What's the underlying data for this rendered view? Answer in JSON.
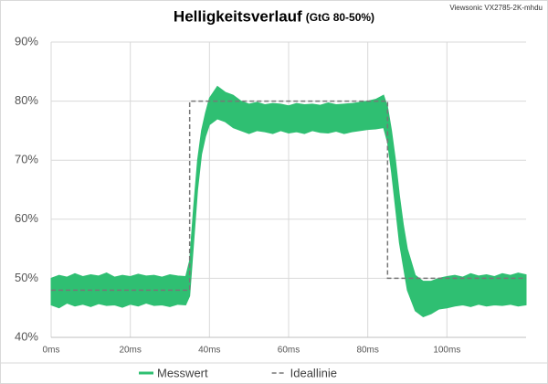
{
  "chart_data": {
    "type": "line",
    "title": "Helligkeitsverlauf",
    "subtitle": "(GtG 80-50%)",
    "annotation": "Viewsonic VX2785-2K-mhdu",
    "xlim": [
      0,
      120
    ],
    "xticks": [
      {
        "value": 0,
        "label": "0ms"
      },
      {
        "value": 20,
        "label": "20ms"
      },
      {
        "value": 40,
        "label": "40ms"
      },
      {
        "value": 60,
        "label": "60ms"
      },
      {
        "value": 80,
        "label": "80ms"
      },
      {
        "value": 100,
        "label": "100ms"
      }
    ],
    "ylim": [
      40,
      90
    ],
    "yticks": [
      {
        "value": 40,
        "label": "40%"
      },
      {
        "value": 50,
        "label": "50%"
      },
      {
        "value": 60,
        "label": "60%"
      },
      {
        "value": 70,
        "label": "70%"
      },
      {
        "value": 80,
        "label": "80%"
      },
      {
        "value": 90,
        "label": "90%"
      }
    ],
    "grid": true,
    "legend": "bottom",
    "series": [
      {
        "name": "Messwert",
        "color": "#2fbf72",
        "x": [
          0,
          2,
          4,
          6,
          8,
          10,
          12,
          14,
          16,
          18,
          20,
          22,
          24,
          26,
          28,
          30,
          32,
          34,
          35,
          36,
          37,
          38,
          39,
          40,
          42,
          44,
          46,
          48,
          50,
          52,
          54,
          56,
          58,
          60,
          62,
          64,
          66,
          68,
          70,
          72,
          74,
          76,
          78,
          80,
          82,
          84,
          85,
          86,
          87,
          88,
          89,
          90,
          92,
          94,
          96,
          98,
          100,
          102,
          104,
          106,
          108,
          110,
          112,
          114,
          116,
          118,
          120
        ],
        "low": [
          45.5,
          45,
          45.8,
          45.3,
          45.6,
          45.2,
          45.7,
          45.4,
          45.5,
          45.1,
          45.6,
          45.3,
          45.8,
          45.4,
          45.5,
          45.2,
          45.6,
          45.5,
          47,
          56,
          65,
          71,
          74,
          76,
          77,
          76.5,
          75.5,
          75,
          74.5,
          75,
          74.8,
          74.5,
          75,
          74.6,
          74.8,
          74.5,
          75,
          74.7,
          74.6,
          74.9,
          74.5,
          74.8,
          75,
          75.2,
          75.3,
          75.5,
          73,
          68,
          62,
          56,
          52,
          48,
          44.5,
          43.5,
          44,
          44.8,
          45,
          45.3,
          45.5,
          45.2,
          45.6,
          45.3,
          45.5,
          45.4,
          45.6,
          45.3,
          45.5
        ],
        "high": [
          50,
          50.5,
          50.2,
          50.8,
          50.3,
          50.6,
          50.4,
          50.9,
          50.2,
          50.5,
          50.3,
          50.7,
          50.4,
          50.5,
          50.2,
          50.6,
          50.4,
          50.3,
          53,
          62,
          70,
          75,
          78,
          80.5,
          82.5,
          81.5,
          81,
          80,
          79.5,
          79.8,
          79.4,
          79.6,
          79.5,
          79.2,
          79.6,
          79.4,
          79.5,
          79.3,
          79.7,
          79.4,
          79.5,
          79.6,
          79.8,
          80,
          80.3,
          81,
          79,
          75,
          70,
          64,
          59,
          55,
          50.5,
          49.5,
          49.5,
          50,
          50.3,
          50.5,
          50.2,
          50.8,
          50.4,
          50.6,
          50.3,
          50.8,
          50.5,
          50.9,
          50.6
        ]
      },
      {
        "name": "Ideallinie",
        "color": "#777777",
        "dash": true,
        "x": [
          0,
          35,
          35,
          85,
          85,
          120
        ],
        "values": [
          48,
          48,
          80,
          80,
          50,
          50
        ]
      }
    ]
  }
}
